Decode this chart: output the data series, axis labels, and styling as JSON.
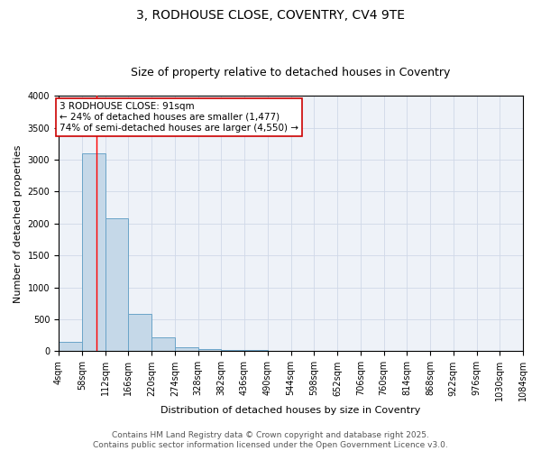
{
  "title_line1": "3, RODHOUSE CLOSE, COVENTRY, CV4 9TE",
  "title_line2": "Size of property relative to detached houses in Coventry",
  "xlabel": "Distribution of detached houses by size in Coventry",
  "ylabel": "Number of detached properties",
  "bar_counts": [
    150,
    3100,
    2080,
    580,
    220,
    70,
    30,
    20,
    20,
    0,
    0,
    0,
    0,
    0,
    0,
    0,
    0,
    0,
    0,
    0
  ],
  "bin_labels": [
    "4sqm",
    "58sqm",
    "112sqm",
    "166sqm",
    "220sqm",
    "274sqm",
    "328sqm",
    "382sqm",
    "436sqm",
    "490sqm",
    "544sqm",
    "598sqm",
    "652sqm",
    "706sqm",
    "760sqm",
    "814sqm",
    "868sqm",
    "922sqm",
    "976sqm",
    "1030sqm",
    "1084sqm"
  ],
  "bin_edges": [
    4,
    58,
    112,
    166,
    220,
    274,
    328,
    382,
    436,
    490,
    544,
    598,
    652,
    706,
    760,
    814,
    868,
    922,
    976,
    1030,
    1084
  ],
  "bar_color": "#c5d8e8",
  "bar_edge_color": "#6aa4c8",
  "red_line_x": 91,
  "ylim": [
    0,
    4000
  ],
  "grid_color": "#d0d8e8",
  "background_color": "#eef2f8",
  "annotation_text": "3 RODHOUSE CLOSE: 91sqm\n← 24% of detached houses are smaller (1,477)\n74% of semi-detached houses are larger (4,550) →",
  "annotation_box_color": "#ffffff",
  "annotation_box_edge_color": "#cc0000",
  "footer_text": "Contains HM Land Registry data © Crown copyright and database right 2025.\nContains public sector information licensed under the Open Government Licence v3.0.",
  "title_fontsize": 10,
  "subtitle_fontsize": 9,
  "axis_label_fontsize": 8,
  "tick_fontsize": 7,
  "annotation_fontsize": 7.5,
  "footer_fontsize": 6.5
}
